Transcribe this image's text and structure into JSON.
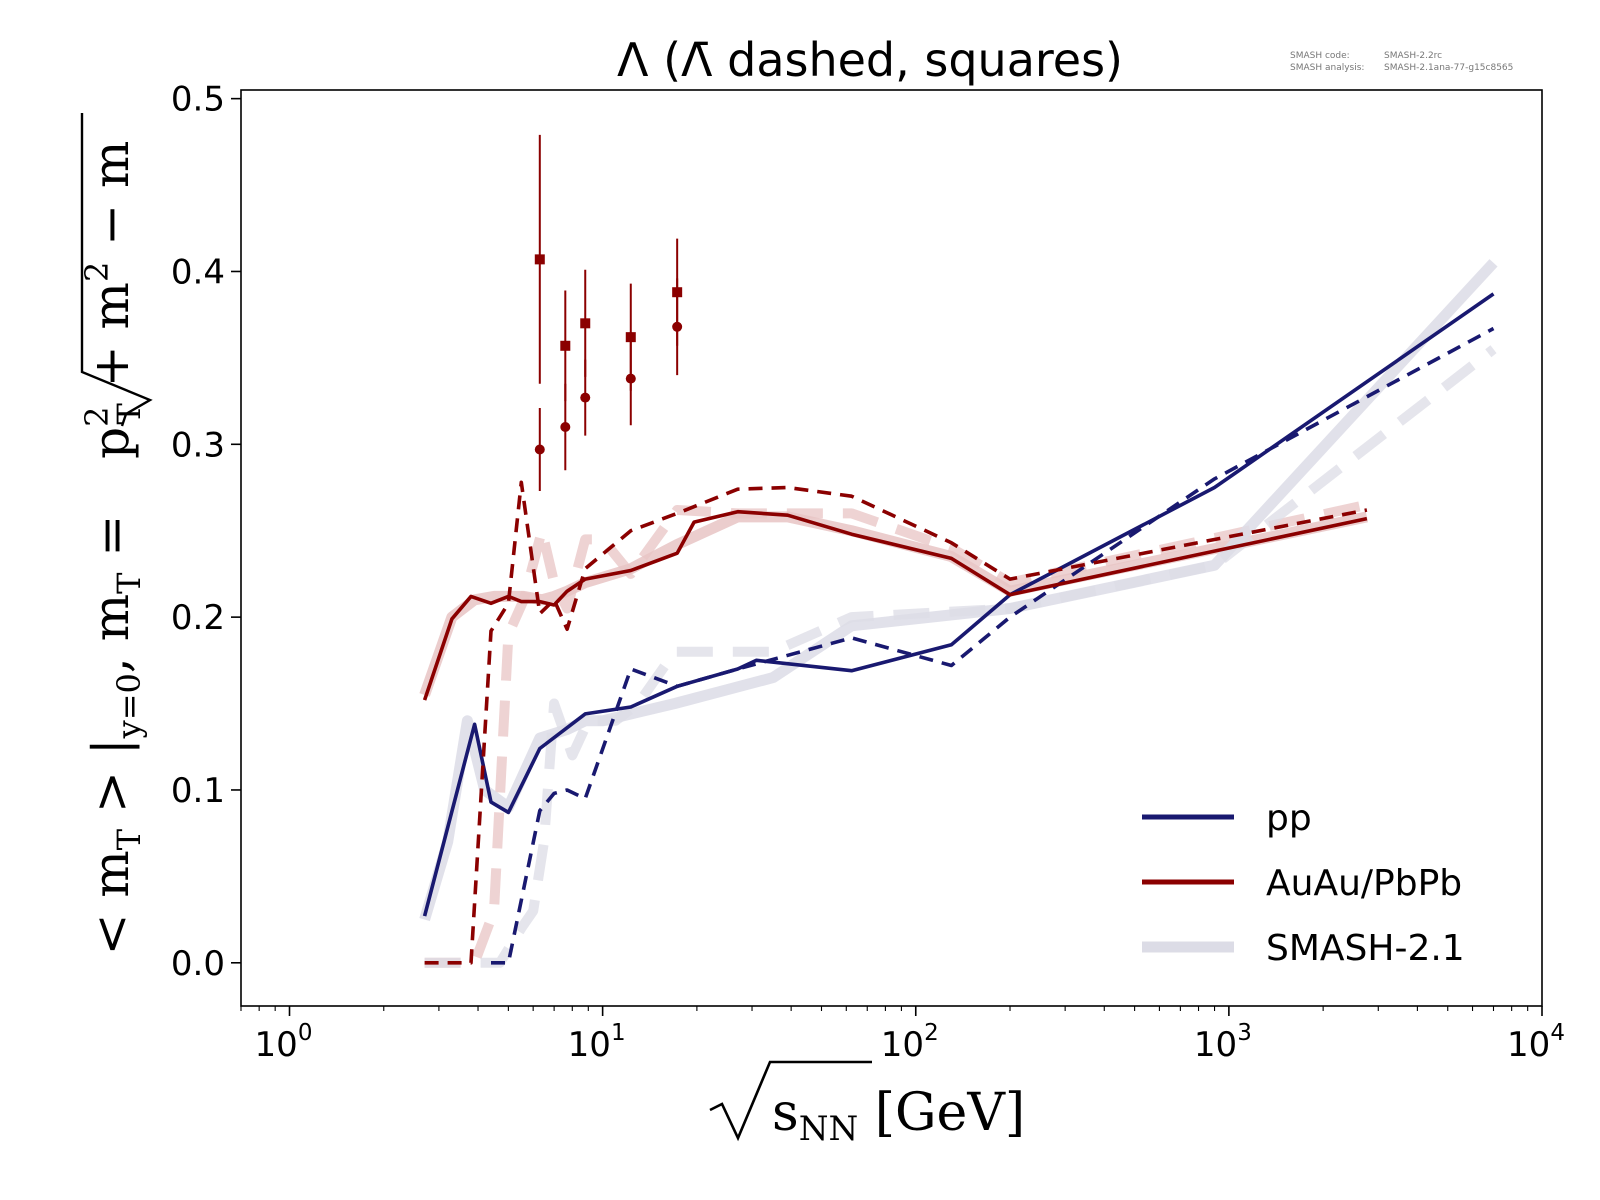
{
  "chart_data": {
    "type": "line",
    "title": "Λ (Λ̄ dashed, squares)",
    "ylabel_main": "< m",
    "ylabel_sub_T": "T",
    "ylabel_rest": " > |",
    "ylabel_sub_y": "y=0",
    "ylabel_def": ", m",
    "ylabel_def_sub": "T",
    "ylabel_eq": " = ",
    "ylabel_root": "p",
    "ylabel_root_sup": "2",
    "ylabel_root_sub": "T",
    "ylabel_plus": " + m",
    "ylabel_m_sup": "2",
    "ylabel_minus": " − m",
    "xlabel_main": "s",
    "xlabel_sub": "NN",
    "xlabel_unit": " [GeV]",
    "notes": [
      {
        "label": "SMASH code:",
        "value": "SMASH-2.2rc"
      },
      {
        "label": "SMASH analysis:",
        "value": "SMASH-2.1ana-77-g15c8565"
      }
    ],
    "x_scale": "log",
    "xlim": [
      0.7,
      10000
    ],
    "ylim": [
      -0.025,
      0.505
    ],
    "grid": false,
    "legend_position": "lower-right",
    "x_ticks": [
      {
        "base": "10",
        "exp": "0",
        "value": 1
      },
      {
        "base": "10",
        "exp": "1",
        "value": 10
      },
      {
        "base": "10",
        "exp": "2",
        "value": 100
      },
      {
        "base": "10",
        "exp": "3",
        "value": 1000
      },
      {
        "base": "10",
        "exp": "4",
        "value": 10000
      }
    ],
    "y_ticks": [
      {
        "label": "0.0",
        "value": 0.0
      },
      {
        "label": "0.1",
        "value": 0.1
      },
      {
        "label": "0.2",
        "value": 0.2
      },
      {
        "label": "0.3",
        "value": 0.3
      },
      {
        "label": "0.4",
        "value": 0.4
      },
      {
        "label": "0.5",
        "value": 0.5
      }
    ],
    "legend": [
      {
        "label": "pp",
        "color": "#191970",
        "style": "solid"
      },
      {
        "label": "AuAu/PbPb",
        "color": "#8b0000",
        "style": "solid"
      },
      {
        "label": "SMASH-2.1",
        "color": "#dcdce6",
        "style": "thick"
      }
    ],
    "series": [
      {
        "key": "smash_aa_lambda",
        "color": "#e8c4c4",
        "style": "smash-solid",
        "x": [
          2.7,
          3.3,
          3.9,
          4.5,
          5.0,
          5.6,
          6.4,
          7.0,
          7.7,
          8.8,
          12.3,
          17.3,
          27,
          39,
          62.4,
          130,
          200,
          2760
        ],
        "y": [
          0.155,
          0.2,
          0.21,
          0.212,
          0.212,
          0.212,
          0.21,
          0.212,
          0.215,
          0.22,
          0.228,
          0.242,
          0.258,
          0.258,
          0.25,
          0.235,
          0.215,
          0.258
        ]
      },
      {
        "key": "smash_aa_antilambda",
        "color": "#e8c4c4",
        "style": "smash-dashed",
        "x": [
          2.7,
          3.9,
          4.5,
          5.0,
          5.6,
          6.4,
          7.0,
          7.7,
          8.8,
          10,
          12.3,
          17.3,
          27,
          39,
          62.4,
          130,
          200,
          2760
        ],
        "y": [
          0.0,
          0.0,
          0.03,
          0.19,
          0.21,
          0.25,
          0.22,
          0.205,
          0.245,
          0.245,
          0.225,
          0.262,
          0.26,
          0.26,
          0.26,
          0.24,
          0.22,
          0.265
        ]
      },
      {
        "key": "smash_pp_lambda",
        "color": "#dcdce6",
        "style": "smash-solid",
        "x": [
          2.7,
          3.2,
          3.7,
          4.2,
          5.0,
          6.3,
          7.7,
          8.8,
          10,
          13,
          17,
          25,
          35,
          62.4,
          200,
          900,
          7000
        ],
        "y": [
          0.025,
          0.07,
          0.14,
          0.1,
          0.09,
          0.13,
          0.135,
          0.14,
          0.14,
          0.145,
          0.15,
          0.158,
          0.165,
          0.195,
          0.205,
          0.23,
          0.405
        ]
      },
      {
        "key": "smash_pp_antilambda",
        "color": "#dcdce6",
        "style": "smash-dashed",
        "x": [
          2.7,
          4.7,
          5.5,
          6.0,
          6.5,
          7.0,
          8.0,
          9.0,
          11,
          13,
          17,
          25,
          35,
          62.4,
          200,
          900,
          7000
        ],
        "y": [
          0.0,
          0.0,
          0.02,
          0.03,
          0.07,
          0.15,
          0.12,
          0.14,
          0.14,
          0.15,
          0.18,
          0.18,
          0.18,
          0.2,
          0.205,
          0.23,
          0.355
        ]
      },
      {
        "key": "pp_lambda",
        "color": "#191970",
        "style": "solid",
        "x": [
          2.7,
          3.9,
          4.4,
          5.0,
          6.3,
          8.8,
          12.3,
          17.3,
          27,
          31,
          62.4,
          130,
          200,
          900,
          7000
        ],
        "y": [
          0.027,
          0.138,
          0.093,
          0.087,
          0.124,
          0.144,
          0.148,
          0.16,
          0.17,
          0.175,
          0.169,
          0.184,
          0.213,
          0.275,
          0.387
        ]
      },
      {
        "key": "pp_antilambda",
        "color": "#191970",
        "style": "dashed",
        "x": [
          4.4,
          5.0,
          6.3,
          7.0,
          7.7,
          8.8,
          12.3,
          17.3,
          27,
          62.4,
          130,
          200,
          900,
          7000
        ],
        "y": [
          0.0,
          0.0,
          0.088,
          0.098,
          0.1,
          0.095,
          0.17,
          0.16,
          0.17,
          0.188,
          0.172,
          0.2,
          0.28,
          0.367
        ]
      },
      {
        "key": "aa_lambda",
        "color": "#8b0000",
        "style": "solid",
        "x": [
          2.7,
          3.3,
          3.8,
          4.4,
          5.0,
          5.5,
          6.3,
          7.0,
          7.7,
          8.8,
          12.3,
          17.3,
          19.6,
          27,
          39,
          62.4,
          130,
          200,
          2760
        ],
        "y": [
          0.152,
          0.199,
          0.212,
          0.208,
          0.212,
          0.209,
          0.209,
          0.207,
          0.215,
          0.222,
          0.227,
          0.237,
          0.255,
          0.261,
          0.259,
          0.248,
          0.234,
          0.213,
          0.257
        ]
      },
      {
        "key": "aa_antilambda",
        "color": "#8b0000",
        "style": "dashed",
        "x": [
          2.7,
          3.8,
          4.4,
          5.0,
          5.5,
          6.3,
          7.0,
          7.7,
          8.8,
          12.3,
          17.3,
          27,
          39,
          62.4,
          130,
          200,
          2760
        ],
        "y": [
          0.0,
          0.0,
          0.192,
          0.208,
          0.278,
          0.202,
          0.21,
          0.193,
          0.228,
          0.25,
          0.26,
          0.274,
          0.275,
          0.27,
          0.243,
          0.222,
          0.262
        ]
      }
    ],
    "data_points": [
      {
        "marker": "circle",
        "color": "#8b0000",
        "x": [
          6.3,
          7.6,
          8.8,
          12.3,
          17.3
        ],
        "y": [
          0.297,
          0.31,
          0.327,
          0.338,
          0.368
        ],
        "yerr": [
          0.024,
          0.025,
          0.022,
          0.027,
          0.028
        ]
      },
      {
        "marker": "square",
        "color": "#8b0000",
        "x": [
          6.3,
          7.6,
          8.8,
          12.3,
          17.3
        ],
        "y": [
          0.407,
          0.357,
          0.37,
          0.362,
          0.388
        ],
        "yerr": [
          0.072,
          0.032,
          0.031,
          0.031,
          0.031
        ]
      }
    ]
  }
}
